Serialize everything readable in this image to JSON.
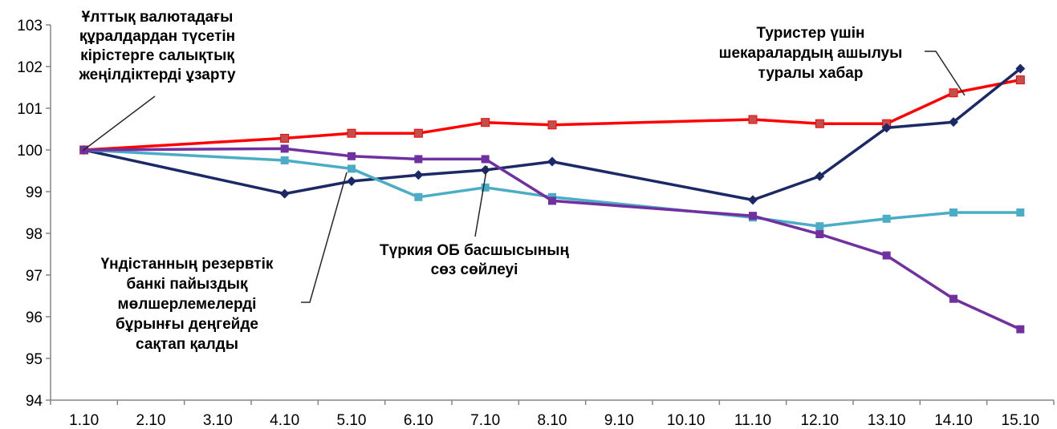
{
  "chart_data": {
    "type": "line",
    "categories": [
      "1.10",
      "2.10",
      "3.10",
      "4.10",
      "5.10",
      "6.10",
      "7.10",
      "8.10",
      "9.10",
      "10.10",
      "11.10",
      "12.10",
      "13.10",
      "14.10",
      "15.10"
    ],
    "ylim": [
      94,
      103
    ],
    "yticks": [
      "94",
      "95",
      "96",
      "97",
      "98",
      "99",
      "100",
      "101",
      "102",
      "103"
    ],
    "grid": false,
    "legend": "none",
    "series": [
      {
        "color": "#ff0000",
        "marker": "square",
        "marker_color": "#c0504d",
        "values": [
          100.0,
          null,
          null,
          100.28,
          100.4,
          100.4,
          100.66,
          100.6,
          null,
          null,
          100.73,
          100.63,
          100.63,
          101.37,
          101.68
        ]
      },
      {
        "color": "#1b2a66",
        "marker": "diamond",
        "marker_color": "#1b2a66",
        "values": [
          100.0,
          null,
          null,
          98.95,
          99.25,
          99.4,
          99.52,
          99.72,
          null,
          null,
          98.8,
          99.37,
          100.53,
          100.67,
          101.95
        ]
      },
      {
        "color": "#4bacc6",
        "marker": "square",
        "marker_color": "#4bacc6",
        "values": [
          100.0,
          null,
          null,
          99.75,
          99.55,
          98.87,
          99.1,
          98.87,
          null,
          null,
          98.38,
          98.17,
          98.35,
          98.5,
          98.5
        ]
      },
      {
        "color": "#7030a0",
        "marker": "square",
        "marker_color": "#7030a0",
        "values": [
          100.0,
          null,
          null,
          100.03,
          99.85,
          99.78,
          99.78,
          98.78,
          null,
          null,
          98.42,
          97.98,
          97.47,
          96.43,
          95.7
        ]
      }
    ],
    "annotations": [
      {
        "lines": [
          "Ұлттық валютадағы",
          "құралдардан түсетін",
          "кірістерге салықтық",
          "жеңілдіктерді ұзарту"
        ]
      },
      {
        "lines": [
          "Туристер үшін",
          "шекаралардың ашылуы",
          "туралы хабар"
        ]
      },
      {
        "lines": [
          "Үндістанның резервтік",
          "банкі пайыздық",
          "мөлшерлемелерді",
          "бұрынғы деңгейде",
          "сақтап қалды"
        ]
      },
      {
        "lines": [
          "Түркия ОБ басшысының",
          "сөз сөйлеуі"
        ]
      }
    ]
  }
}
